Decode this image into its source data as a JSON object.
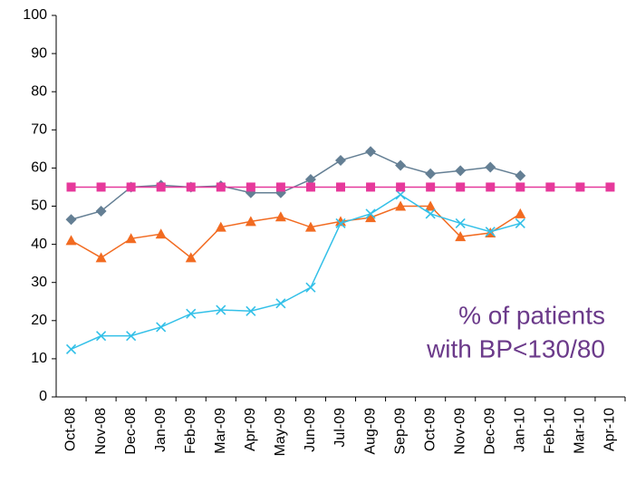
{
  "chart_data": {
    "type": "line",
    "categories": [
      "Oct-08",
      "Nov-08",
      "Dec-08",
      "Jan-09",
      "Feb-09",
      "Mar-09",
      "Apr-09",
      "May-09",
      "Jun-09",
      "Jul-09",
      "Aug-09",
      "Sep-09",
      "Oct-09",
      "Nov-09",
      "Dec-09",
      "Jan-10",
      "Feb-10",
      "Mar-10",
      "Apr-10"
    ],
    "series": [
      {
        "color": "#647f94",
        "marker": "diamond",
        "values": [
          46.5,
          48.7,
          55,
          55.5,
          55,
          55.3,
          53.5,
          53.5,
          57,
          62,
          64.3,
          60.7,
          58.5,
          59.3,
          60.2,
          58,
          null,
          null,
          null
        ]
      },
      {
        "color": "#f26b21",
        "marker": "triangle",
        "values": [
          41,
          36.5,
          41.5,
          42.7,
          36.5,
          44.5,
          46,
          47.2,
          44.5,
          46,
          47,
          50,
          50,
          42,
          43,
          48,
          null,
          null,
          null
        ]
      },
      {
        "color": "#33c0e8",
        "marker": "x",
        "values": [
          12.5,
          16,
          16,
          18.3,
          21.8,
          22.8,
          22.5,
          24.5,
          28.7,
          45.5,
          48,
          53,
          48,
          45.5,
          43.3,
          45.5,
          null,
          null,
          null
        ]
      },
      {
        "color": "#e6399b",
        "marker": "square",
        "values": [
          55,
          55,
          55,
          55,
          55,
          55,
          55,
          55,
          55,
          55,
          55,
          55,
          55,
          55,
          55,
          55,
          55,
          55,
          55
        ]
      }
    ],
    "annotation": [
      "% of patients",
      "with BP<130/80"
    ],
    "annotation_color": "#6b3a8a",
    "ylim": [
      0,
      100
    ],
    "yticks": [
      0,
      10,
      20,
      30,
      40,
      50,
      60,
      70,
      80,
      90,
      100
    ],
    "grid": false
  }
}
